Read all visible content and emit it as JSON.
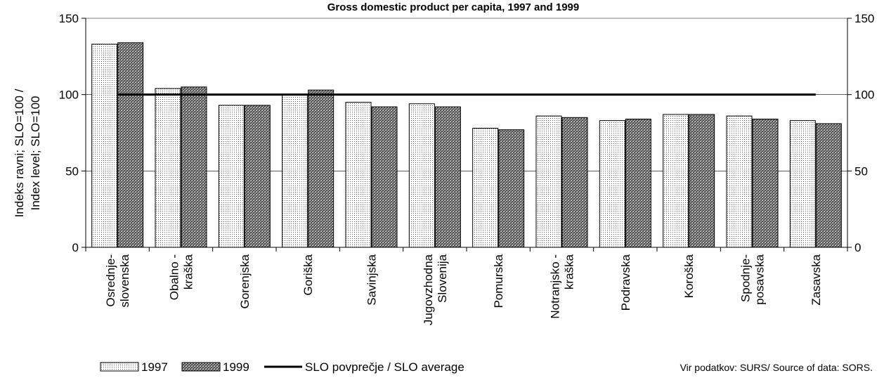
{
  "chart_data": {
    "type": "bar",
    "title": "Gross domestic product per capita, 1997 and 1999",
    "ylabel_line1": "Indeks ravni; SLO=100 /",
    "ylabel_line2": "Index level; SLO=100",
    "ylim": [
      0,
      150
    ],
    "yticks": [
      0,
      50,
      100,
      150
    ],
    "categories": [
      [
        "Osrednje-",
        "slovenska"
      ],
      [
        "Obalno -",
        "kraška"
      ],
      [
        "Gorenjska"
      ],
      [
        "Goriška"
      ],
      [
        "Savinjska"
      ],
      [
        "Jugovzhodna",
        "Slovenija"
      ],
      [
        "Pomurska"
      ],
      [
        "Notranjsko -",
        "kraška"
      ],
      [
        "Podravska"
      ],
      [
        "Koroška"
      ],
      [
        "Spodnje-",
        "posavska"
      ],
      [
        "Zasavska"
      ]
    ],
    "series": [
      {
        "name": "1997",
        "values": [
          133,
          104,
          93,
          100,
          95,
          94,
          78,
          86,
          83,
          87,
          86,
          83
        ]
      },
      {
        "name": "1999",
        "values": [
          134,
          105,
          93,
          103,
          92,
          92,
          77,
          85,
          84,
          87,
          84,
          81
        ]
      }
    ],
    "reference_line": {
      "name": "SLO povprečje / SLO average",
      "value": 100
    },
    "grid": true,
    "secondary_y_axis": true,
    "legend_position": "bottom-left",
    "source": "Vir podatkov: SURS/ Source of data: SORS."
  }
}
